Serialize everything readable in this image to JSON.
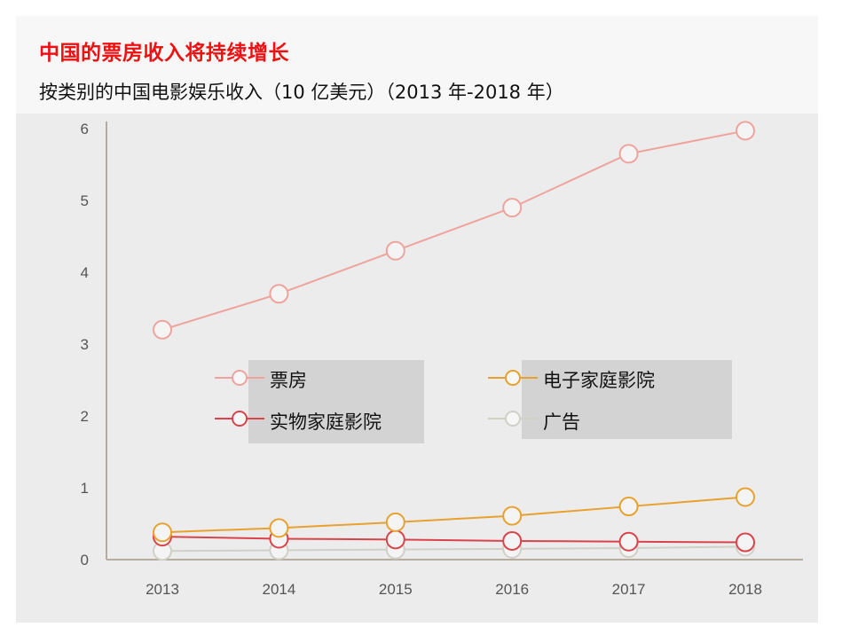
{
  "header": {
    "title": "中国的票房收入将持续增长",
    "subtitle": "按类别的中国电影娱乐收入（10 亿美元）（2013 年-2018 年）"
  },
  "colors": {
    "box_office": "#efa39d",
    "home_video_electronic": "#e8a12e",
    "home_video_physical": "#d9444a",
    "advertising": "#d0d0c8",
    "axis": "#b5aca0",
    "title": "#ee1111"
  },
  "chart_data": {
    "type": "line",
    "title": "按类别的中国电影娱乐收入（10 亿美元）（2013 年-2018 年）",
    "xlabel": "",
    "ylabel": "",
    "x": [
      "2013",
      "2014",
      "2015",
      "2016",
      "2017",
      "2018"
    ],
    "ylim": [
      0,
      6
    ],
    "yticks": [
      "0",
      "1",
      "2",
      "3",
      "4",
      "5",
      "6"
    ],
    "grid": false,
    "legend_position": "center",
    "series": [
      {
        "name": "票房",
        "color": "#efa39d",
        "values": [
          3.2,
          3.7,
          4.3,
          4.9,
          5.65,
          5.97
        ]
      },
      {
        "name": "电子家庭影院",
        "color": "#e8a12e",
        "values": [
          0.38,
          0.44,
          0.52,
          0.61,
          0.74,
          0.87
        ]
      },
      {
        "name": "实物家庭影院",
        "color": "#d9444a",
        "values": [
          0.32,
          0.29,
          0.28,
          0.26,
          0.25,
          0.24
        ]
      },
      {
        "name": "广告",
        "color": "#d0d0c8",
        "values": [
          0.12,
          0.13,
          0.14,
          0.15,
          0.16,
          0.18
        ]
      }
    ]
  }
}
